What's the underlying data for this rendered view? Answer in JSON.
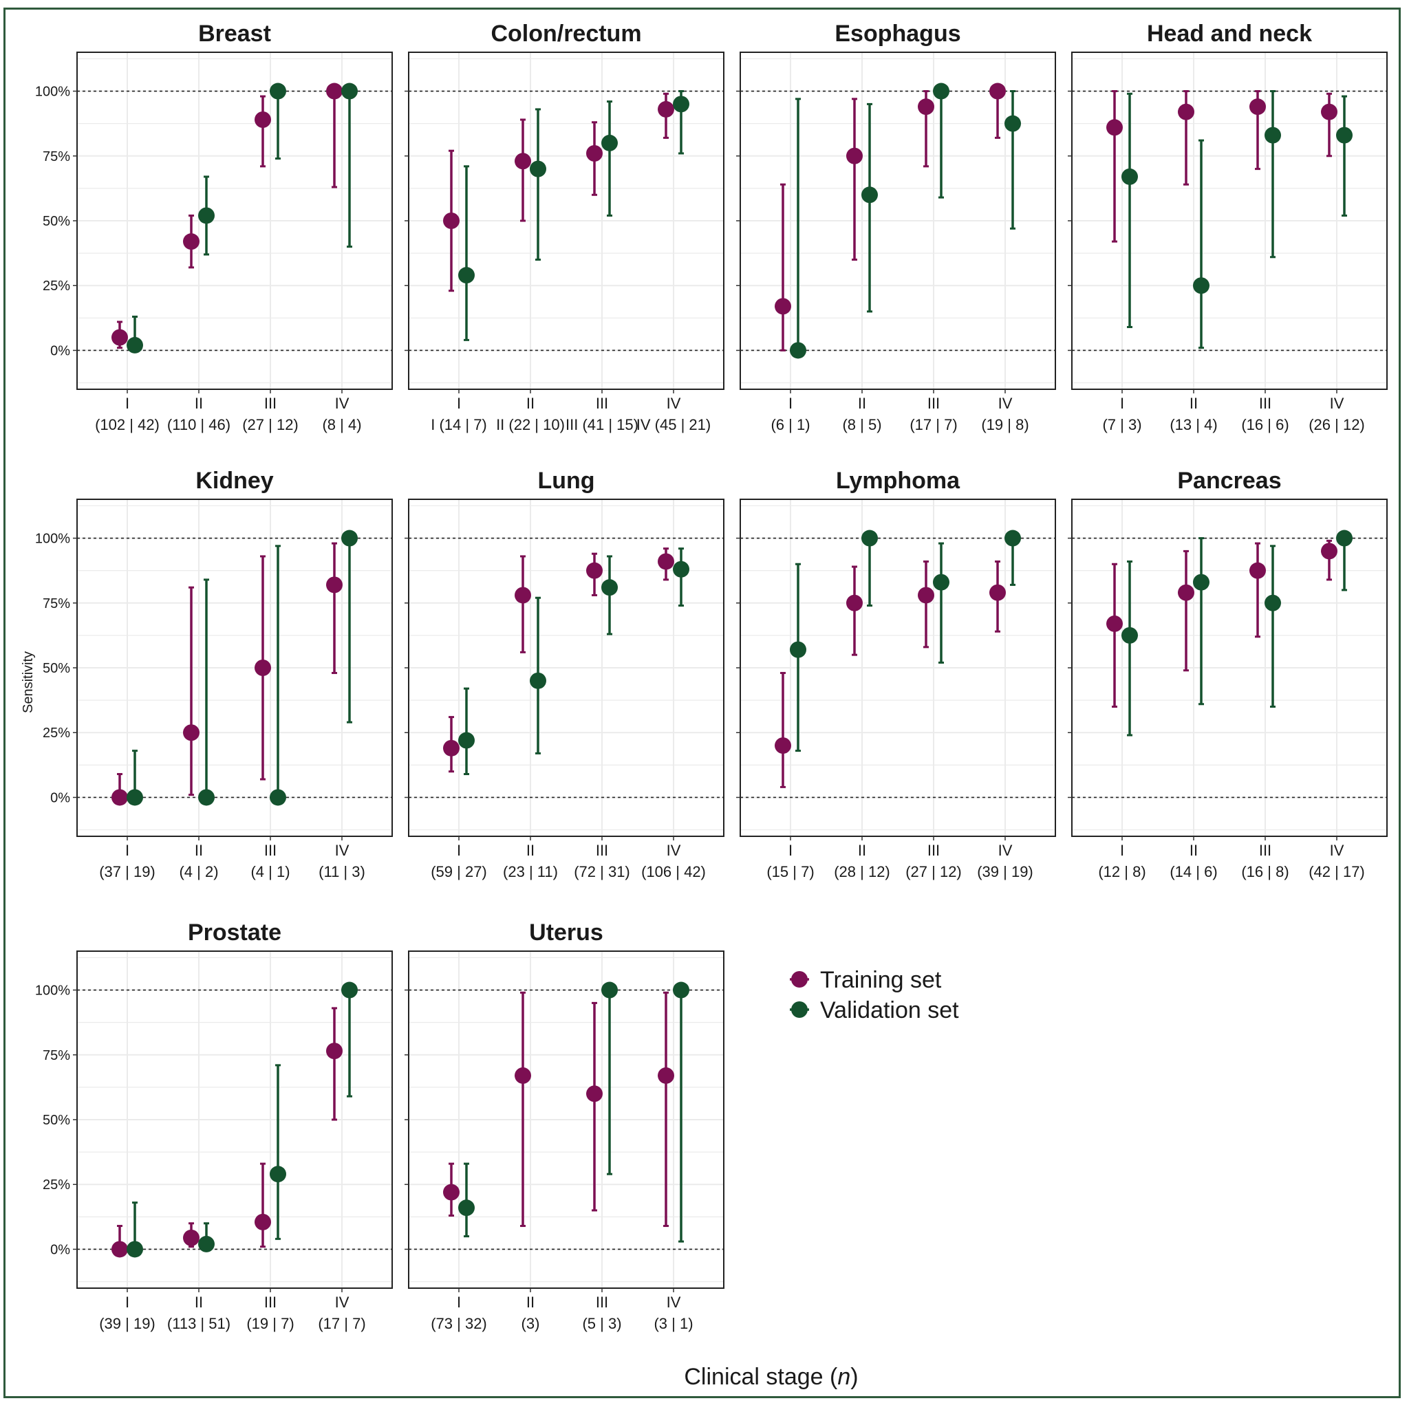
{
  "colors": {
    "training": "#7c0f52",
    "validation": "#14522e",
    "grid": "#ebebeb",
    "frame": "#2f5a3c"
  },
  "chart_data": {
    "type": "scatter",
    "subtype": "point-with-error-bars",
    "ylabel": "Sensitivity",
    "xlabel": "Clinical stage (",
    "xlabel_italic": "n",
    "xlabel_end": ")",
    "ylim": [
      -0.15,
      1.15
    ],
    "y_ticks": [
      0,
      0.25,
      0.5,
      0.75,
      1.0
    ],
    "y_tick_labels": [
      "0%",
      "25%",
      "50%",
      "75%",
      "100%"
    ],
    "reference_lines": [
      0,
      1
    ],
    "legend": {
      "position": "right-of-bottom-row",
      "entries": [
        "Training set",
        "Validation set"
      ]
    },
    "panels": [
      {
        "title": "Breast",
        "stages": [
          "I",
          "II",
          "III",
          "IV"
        ],
        "n_labels": [
          "(102 | 42)",
          "(110 | 46)",
          "(27 | 12)",
          "(8 | 4)"
        ],
        "training": [
          {
            "y": 0.05,
            "lo": 0.01,
            "hi": 0.11
          },
          {
            "y": 0.42,
            "lo": 0.32,
            "hi": 0.52
          },
          {
            "y": 0.89,
            "lo": 0.71,
            "hi": 0.98
          },
          {
            "y": 1.0,
            "lo": 0.63,
            "hi": 1.0
          }
        ],
        "validation": [
          {
            "y": 0.02,
            "lo": 0.0,
            "hi": 0.13
          },
          {
            "y": 0.52,
            "lo": 0.37,
            "hi": 0.67
          },
          {
            "y": 1.0,
            "lo": 0.74,
            "hi": 1.0
          },
          {
            "y": 1.0,
            "lo": 0.4,
            "hi": 1.0
          }
        ]
      },
      {
        "title": "Colon/rectum",
        "stages": [
          "I",
          "II",
          "III",
          "IV"
        ],
        "n_labels": [
          "I (14 | 7)",
          "II (22 | 10)",
          "III (41 | 15)",
          "IV (45 | 21)"
        ],
        "training": [
          {
            "y": 0.5,
            "lo": 0.23,
            "hi": 0.77
          },
          {
            "y": 0.73,
            "lo": 0.5,
            "hi": 0.89
          },
          {
            "y": 0.76,
            "lo": 0.6,
            "hi": 0.88
          },
          {
            "y": 0.93,
            "lo": 0.82,
            "hi": 0.99
          }
        ],
        "validation": [
          {
            "y": 0.29,
            "lo": 0.04,
            "hi": 0.71
          },
          {
            "y": 0.7,
            "lo": 0.35,
            "hi": 0.93
          },
          {
            "y": 0.8,
            "lo": 0.52,
            "hi": 0.96
          },
          {
            "y": 0.95,
            "lo": 0.76,
            "hi": 1.0
          }
        ]
      },
      {
        "title": "Esophagus",
        "stages": [
          "I",
          "II",
          "III",
          "IV"
        ],
        "n_labels": [
          "(6 | 1)",
          "(8 | 5)",
          "(17 | 7)",
          "(19 | 8)"
        ],
        "training": [
          {
            "y": 0.17,
            "lo": 0.0,
            "hi": 0.64
          },
          {
            "y": 0.75,
            "lo": 0.35,
            "hi": 0.97
          },
          {
            "y": 0.94,
            "lo": 0.71,
            "hi": 1.0
          },
          {
            "y": 1.0,
            "lo": 0.82,
            "hi": 1.0
          }
        ],
        "validation": [
          {
            "y": 0.0,
            "lo": 0.0,
            "hi": 0.97
          },
          {
            "y": 0.6,
            "lo": 0.15,
            "hi": 0.95
          },
          {
            "y": 1.0,
            "lo": 0.59,
            "hi": 1.0
          },
          {
            "y": 0.875,
            "lo": 0.47,
            "hi": 1.0
          }
        ]
      },
      {
        "title": "Head and neck",
        "stages": [
          "I",
          "II",
          "III",
          "IV"
        ],
        "n_labels": [
          "(7 | 3)",
          "(13 | 4)",
          "(16 | 6)",
          "(26 | 12)"
        ],
        "training": [
          {
            "y": 0.86,
            "lo": 0.42,
            "hi": 1.0
          },
          {
            "y": 0.92,
            "lo": 0.64,
            "hi": 1.0
          },
          {
            "y": 0.94,
            "lo": 0.7,
            "hi": 1.0
          },
          {
            "y": 0.92,
            "lo": 0.75,
            "hi": 0.99
          }
        ],
        "validation": [
          {
            "y": 0.67,
            "lo": 0.09,
            "hi": 0.99
          },
          {
            "y": 0.25,
            "lo": 0.01,
            "hi": 0.81
          },
          {
            "y": 0.83,
            "lo": 0.36,
            "hi": 1.0
          },
          {
            "y": 0.83,
            "lo": 0.52,
            "hi": 0.98
          }
        ]
      },
      {
        "title": "Kidney",
        "stages": [
          "I",
          "II",
          "III",
          "IV"
        ],
        "n_labels": [
          "(37 | 19)",
          "(4 | 2)",
          "(4 | 1)",
          "(11 | 3)"
        ],
        "training": [
          {
            "y": 0.0,
            "lo": 0.0,
            "hi": 0.09
          },
          {
            "y": 0.25,
            "lo": 0.01,
            "hi": 0.81
          },
          {
            "y": 0.5,
            "lo": 0.07,
            "hi": 0.93
          },
          {
            "y": 0.82,
            "lo": 0.48,
            "hi": 0.98
          }
        ],
        "validation": [
          {
            "y": 0.0,
            "lo": 0.0,
            "hi": 0.18
          },
          {
            "y": 0.0,
            "lo": 0.0,
            "hi": 0.84
          },
          {
            "y": 0.0,
            "lo": 0.0,
            "hi": 0.97
          },
          {
            "y": 1.0,
            "lo": 0.29,
            "hi": 1.0
          }
        ]
      },
      {
        "title": "Lung",
        "stages": [
          "I",
          "II",
          "III",
          "IV"
        ],
        "n_labels": [
          "(59 | 27)",
          "(23 | 11)",
          "(72 | 31)",
          "(106 | 42)"
        ],
        "training": [
          {
            "y": 0.19,
            "lo": 0.1,
            "hi": 0.31
          },
          {
            "y": 0.78,
            "lo": 0.56,
            "hi": 0.93
          },
          {
            "y": 0.875,
            "lo": 0.78,
            "hi": 0.94
          },
          {
            "y": 0.91,
            "lo": 0.84,
            "hi": 0.96
          }
        ],
        "validation": [
          {
            "y": 0.22,
            "lo": 0.09,
            "hi": 0.42
          },
          {
            "y": 0.45,
            "lo": 0.17,
            "hi": 0.77
          },
          {
            "y": 0.81,
            "lo": 0.63,
            "hi": 0.93
          },
          {
            "y": 0.88,
            "lo": 0.74,
            "hi": 0.96
          }
        ]
      },
      {
        "title": "Lymphoma",
        "stages": [
          "I",
          "II",
          "III",
          "IV"
        ],
        "n_labels": [
          "(15 | 7)",
          "(28 | 12)",
          "(27 | 12)",
          "(39 | 19)"
        ],
        "training": [
          {
            "y": 0.2,
            "lo": 0.04,
            "hi": 0.48
          },
          {
            "y": 0.75,
            "lo": 0.55,
            "hi": 0.89
          },
          {
            "y": 0.78,
            "lo": 0.58,
            "hi": 0.91
          },
          {
            "y": 0.79,
            "lo": 0.64,
            "hi": 0.91
          }
        ],
        "validation": [
          {
            "y": 0.57,
            "lo": 0.18,
            "hi": 0.9
          },
          {
            "y": 1.0,
            "lo": 0.74,
            "hi": 1.0
          },
          {
            "y": 0.83,
            "lo": 0.52,
            "hi": 0.98
          },
          {
            "y": 1.0,
            "lo": 0.82,
            "hi": 1.0
          }
        ]
      },
      {
        "title": "Pancreas",
        "stages": [
          "I",
          "II",
          "III",
          "IV"
        ],
        "n_labels": [
          "(12 | 8)",
          "(14 | 6)",
          "(16 | 8)",
          "(42 | 17)"
        ],
        "training": [
          {
            "y": 0.67,
            "lo": 0.35,
            "hi": 0.9
          },
          {
            "y": 0.79,
            "lo": 0.49,
            "hi": 0.95
          },
          {
            "y": 0.875,
            "lo": 0.62,
            "hi": 0.98
          },
          {
            "y": 0.95,
            "lo": 0.84,
            "hi": 0.99
          }
        ],
        "validation": [
          {
            "y": 0.625,
            "lo": 0.24,
            "hi": 0.91
          },
          {
            "y": 0.83,
            "lo": 0.36,
            "hi": 1.0
          },
          {
            "y": 0.75,
            "lo": 0.35,
            "hi": 0.97
          },
          {
            "y": 1.0,
            "lo": 0.8,
            "hi": 1.0
          }
        ]
      },
      {
        "title": "Prostate",
        "stages": [
          "I",
          "II",
          "III",
          "IV"
        ],
        "n_labels": [
          "(39 | 19)",
          "(113 | 51)",
          "(19 | 7)",
          "(17 | 7)"
        ],
        "training": [
          {
            "y": 0.0,
            "lo": 0.0,
            "hi": 0.09
          },
          {
            "y": 0.044,
            "lo": 0.01,
            "hi": 0.1
          },
          {
            "y": 0.105,
            "lo": 0.01,
            "hi": 0.33
          },
          {
            "y": 0.765,
            "lo": 0.5,
            "hi": 0.93
          }
        ],
        "validation": [
          {
            "y": 0.0,
            "lo": 0.0,
            "hi": 0.18
          },
          {
            "y": 0.02,
            "lo": 0.0,
            "hi": 0.1
          },
          {
            "y": 0.29,
            "lo": 0.04,
            "hi": 0.71
          },
          {
            "y": 1.0,
            "lo": 0.59,
            "hi": 1.0
          }
        ]
      },
      {
        "title": "Uterus",
        "stages": [
          "I",
          "II",
          "III",
          "IV"
        ],
        "n_labels": [
          "(73 | 32)",
          "(3)",
          "(5 | 3)",
          "(3 | 1)"
        ],
        "training": [
          {
            "y": 0.22,
            "lo": 0.13,
            "hi": 0.33
          },
          {
            "y": 0.67,
            "lo": 0.09,
            "hi": 0.99
          },
          {
            "y": 0.6,
            "lo": 0.15,
            "hi": 0.95
          },
          {
            "y": 0.67,
            "lo": 0.09,
            "hi": 0.99
          }
        ],
        "validation": [
          {
            "y": 0.16,
            "lo": 0.05,
            "hi": 0.33
          },
          null,
          {
            "y": 1.0,
            "lo": 0.29,
            "hi": 1.0
          },
          {
            "y": 1.0,
            "lo": 0.03,
            "hi": 1.0
          }
        ]
      }
    ]
  }
}
